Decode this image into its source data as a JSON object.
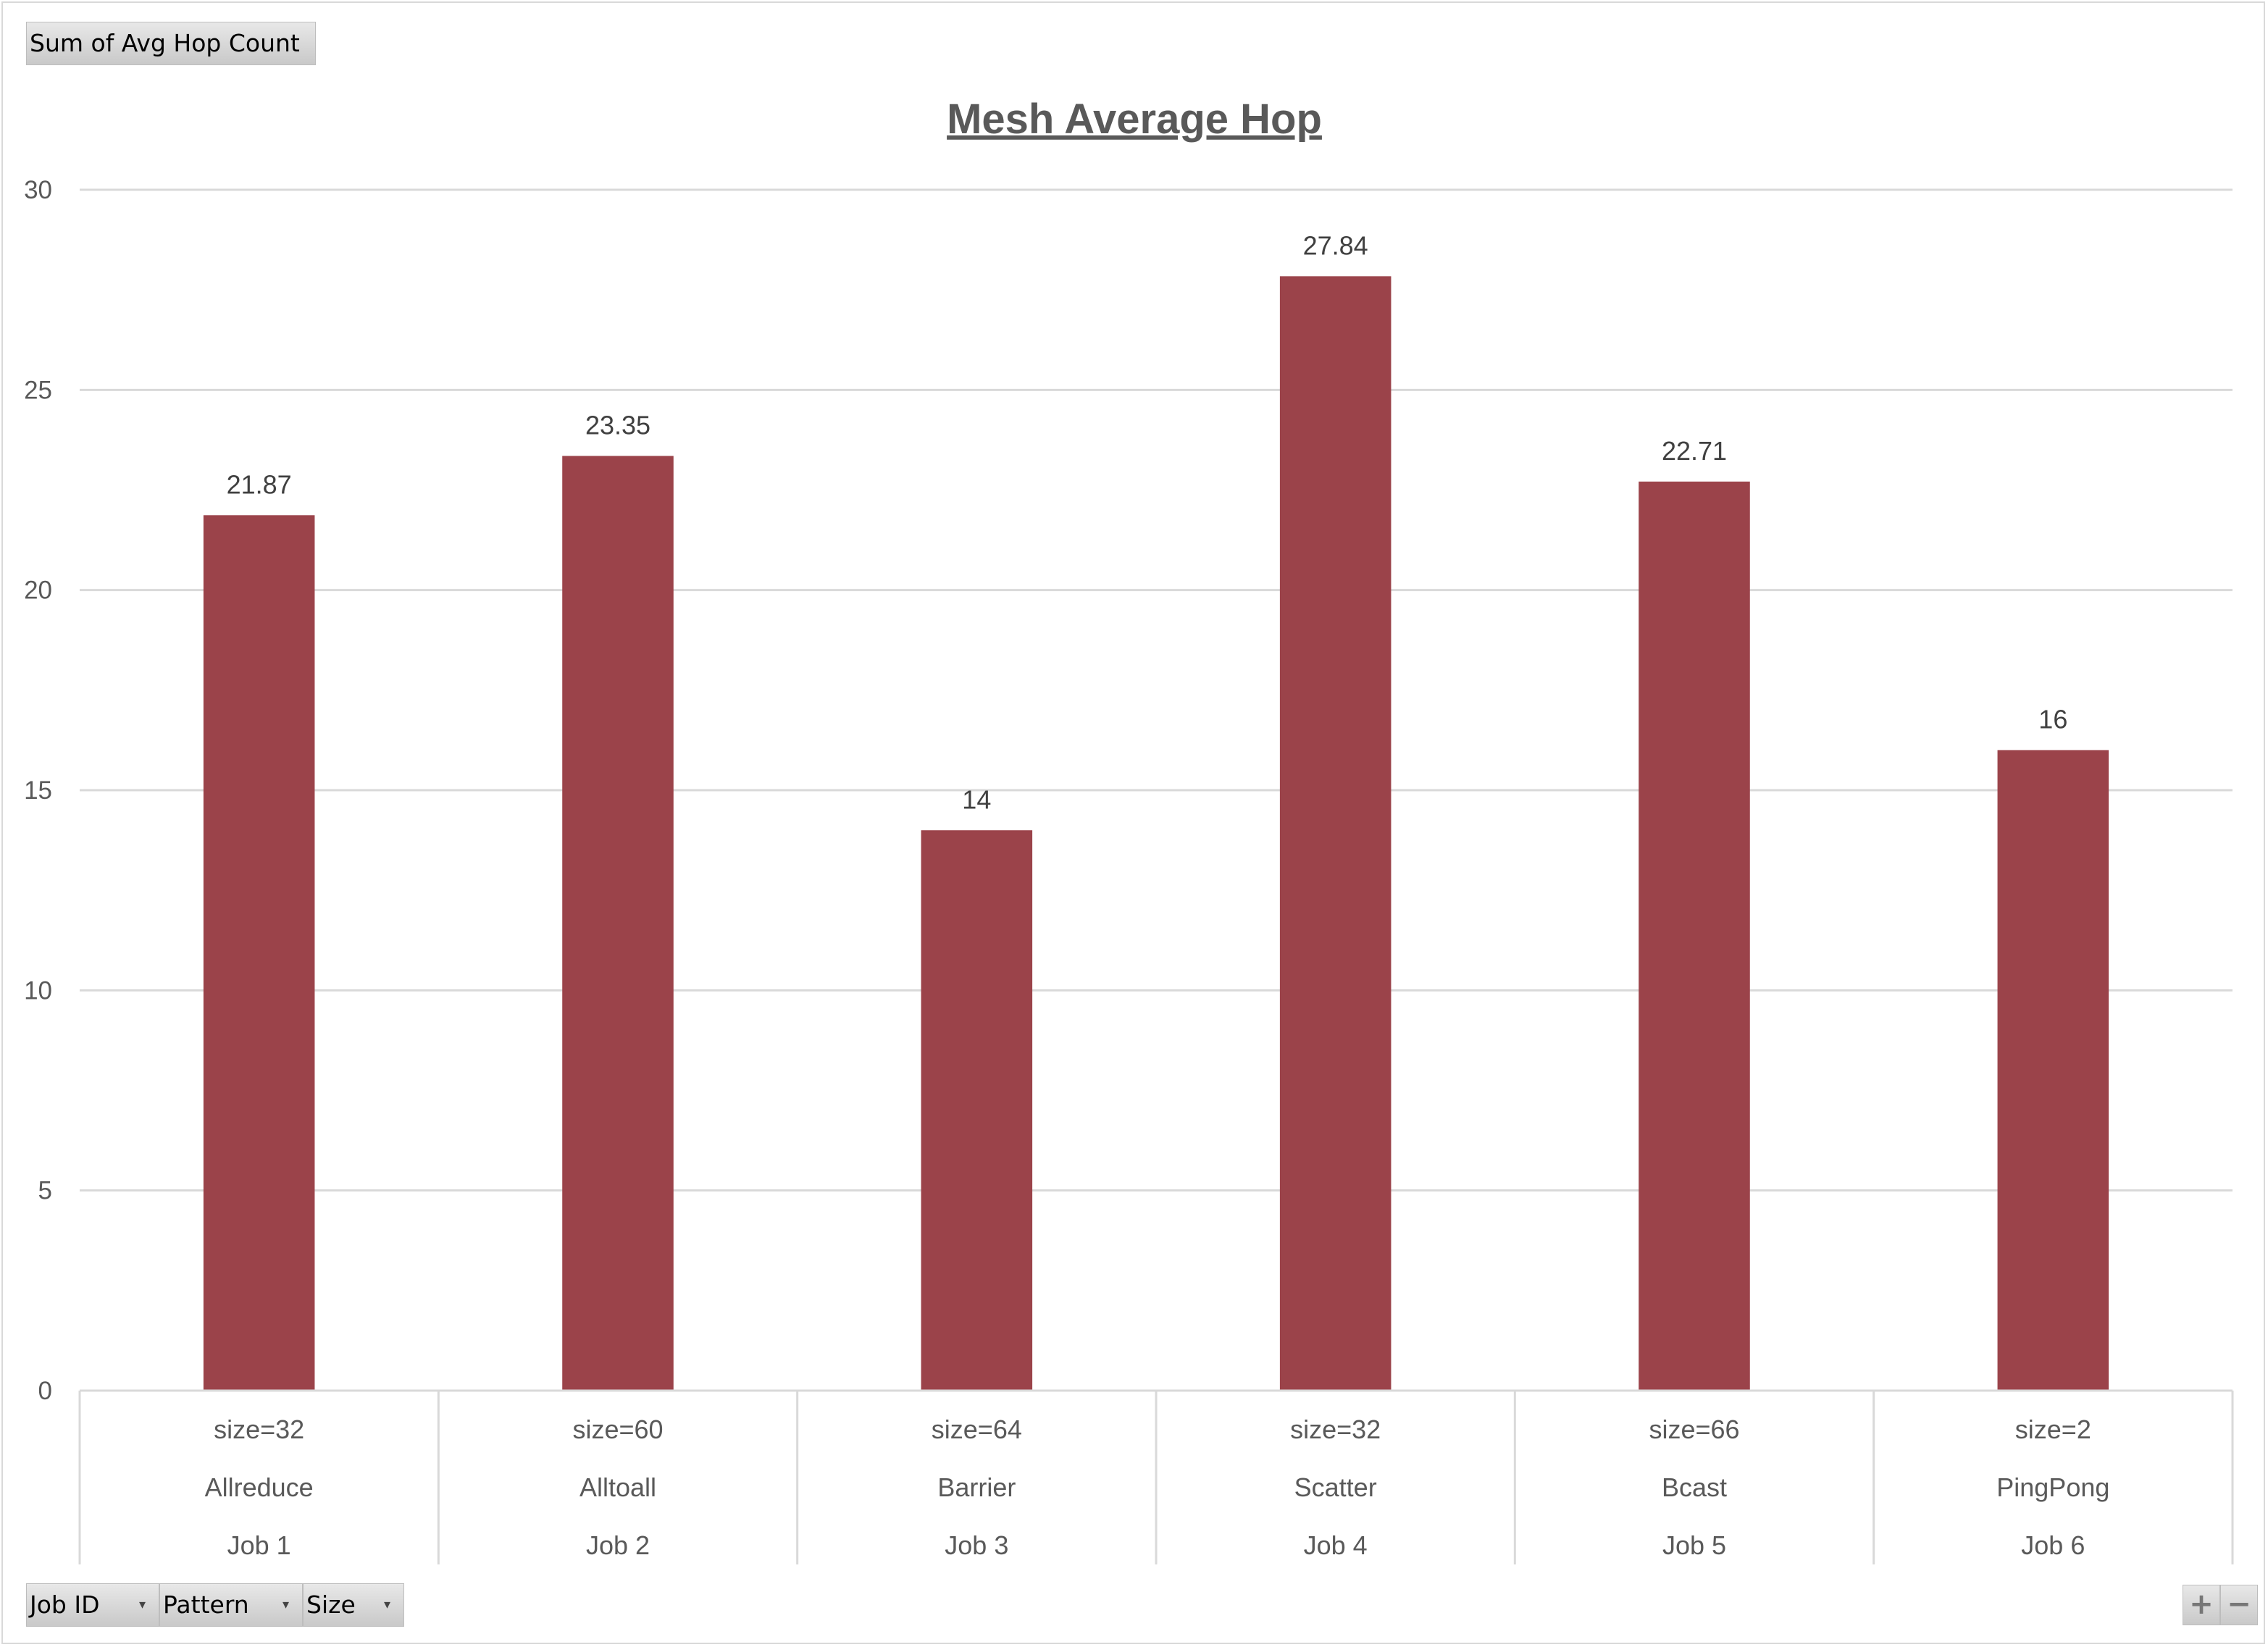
{
  "pivot": {
    "value_field": "Sum of Avg Hop Count",
    "axis_fields": [
      "Job ID",
      "Pattern",
      "Size"
    ],
    "zoom_in": "+",
    "zoom_out": "−"
  },
  "chart_data": {
    "type": "bar",
    "title": "Mesh Average Hop",
    "xlabel": "",
    "ylabel": "",
    "ylim": [
      0,
      30
    ],
    "yticks": [
      0,
      5,
      10,
      15,
      20,
      25,
      30
    ],
    "grid": true,
    "bar_color": "#9b434a",
    "categories": [
      {
        "job": "Job 1",
        "pattern": "Allreduce",
        "size": "size=32"
      },
      {
        "job": "Job 2",
        "pattern": "Alltoall",
        "size": "size=60"
      },
      {
        "job": "Job 3",
        "pattern": "Barrier",
        "size": "size=64"
      },
      {
        "job": "Job 4",
        "pattern": "Scatter",
        "size": "size=32"
      },
      {
        "job": "Job 5",
        "pattern": "Bcast",
        "size": "size=66"
      },
      {
        "job": "Job 6",
        "pattern": "PingPong",
        "size": "size=2"
      }
    ],
    "values": [
      21.87,
      23.35,
      14,
      27.84,
      22.71,
      16
    ],
    "data_labels": [
      "21.87",
      "23.35",
      "14",
      "27.84",
      "22.71",
      "16"
    ]
  }
}
